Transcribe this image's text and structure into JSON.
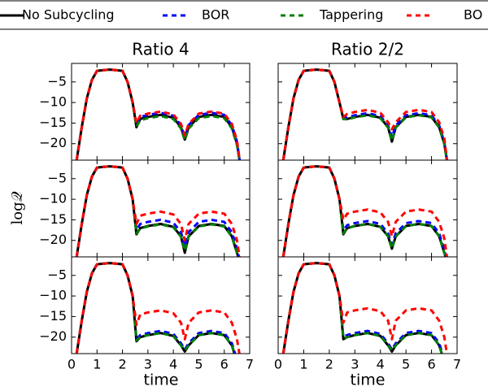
{
  "chart_data": {
    "type": "line",
    "legend": [
      {
        "name": "No Subcycling",
        "color": "#000000",
        "linestyle": "solid"
      },
      {
        "name": "BOR",
        "color": "#0000ff",
        "linestyle": "dashed"
      },
      {
        "name": "Tappering",
        "color": "#008000",
        "linestyle": "dashed"
      },
      {
        "name": "BO",
        "color": "#ff0000",
        "linestyle": "dashed"
      }
    ],
    "xlabel": "time",
    "ylabel": "log𝒬",
    "x": [
      0.2,
      0.4,
      0.6,
      0.8,
      1.0,
      1.5,
      2.0,
      2.2,
      2.4,
      2.55,
      2.7,
      3.0,
      3.5,
      4.0,
      4.3,
      4.45,
      4.6,
      5.0,
      5.5,
      6.0,
      6.3,
      6.5,
      6.65
    ],
    "xlim": [
      0,
      7
    ],
    "xticks": [
      0,
      1,
      2,
      3,
      4,
      5,
      6,
      7
    ],
    "ylim": [
      -24,
      -0.5
    ],
    "yticks": [
      {
        "value": -20,
        "label": "−20"
      },
      {
        "value": -15,
        "label": "−15"
      },
      {
        "value": -10,
        "label": "−10"
      },
      {
        "value": -5,
        "label": "−5"
      }
    ],
    "panels": [
      {
        "title": "Ratio 4",
        "series": [
          {
            "values": [
              -24,
              -16,
              -9,
              -4.5,
              -2.3,
              -2,
              -2.3,
              -5,
              -10,
              -16,
              -14,
              -13.5,
              -13,
              -13.7,
              -16,
              -19,
              -16,
              -13.5,
              -13,
              -13.5,
              -16,
              -20,
              -26
            ]
          },
          {
            "values": [
              -24,
              -16,
              -9,
              -4.5,
              -2.3,
              -2,
              -2.3,
              -5,
              -10,
              -15.5,
              -13.5,
              -13,
              -12.5,
              -13.2,
              -15.5,
              -18.5,
              -15.5,
              -13,
              -12.5,
              -13,
              -15.5,
              -19.5,
              -26
            ]
          },
          {
            "values": [
              -24,
              -16,
              -9,
              -4.5,
              -2.3,
              -2,
              -2.3,
              -5,
              -10,
              -15.8,
              -14.3,
              -13.8,
              -13.3,
              -14,
              -16.3,
              -19.2,
              -16.3,
              -13.8,
              -13.3,
              -13.8,
              -16.3,
              -20.3,
              -26
            ]
          },
          {
            "values": [
              -24,
              -16,
              -9,
              -4.5,
              -2.3,
              -2,
              -2.3,
              -5,
              -10,
              -15,
              -13.2,
              -12.7,
              -12.2,
              -12.9,
              -15.2,
              -18,
              -15.2,
              -12.7,
              -12.2,
              -12.7,
              -15.2,
              -19.2,
              -26
            ]
          }
        ]
      },
      {
        "title": "Ratio 2/2",
        "series": [
          {
            "values": [
              -24,
              -16,
              -9,
              -4.5,
              -2.3,
              -2,
              -2.3,
              -5,
              -10,
              -14,
              -14,
              -13.5,
              -13,
              -13.7,
              -16,
              -19.5,
              -16,
              -13.5,
              -13,
              -13.5,
              -16,
              -20,
              -26
            ]
          },
          {
            "values": [
              -24,
              -16,
              -9,
              -4.5,
              -2.3,
              -2,
              -2.3,
              -5,
              -10,
              -13.8,
              -13.6,
              -13.1,
              -12.6,
              -13.3,
              -15.6,
              -18.5,
              -15.6,
              -13.1,
              -12.6,
              -13.1,
              -15.6,
              -19.6,
              -26
            ]
          },
          {
            "values": [
              -24,
              -16,
              -9,
              -4.5,
              -2.3,
              -2,
              -2.3,
              -5,
              -10,
              -14,
              -14.1,
              -13.6,
              -13.1,
              -13.8,
              -16.1,
              -19.3,
              -16.1,
              -13.6,
              -13.1,
              -13.6,
              -16.1,
              -20.1,
              -26
            ]
          },
          {
            "values": [
              -24,
              -16,
              -9,
              -4.5,
              -2.3,
              -2,
              -2.3,
              -5,
              -10,
              -13.5,
              -12.8,
              -12.3,
              -11.8,
              -12.5,
              -14.8,
              -16.5,
              -14.8,
              -12.3,
              -11.8,
              -12.3,
              -14.8,
              -18.8,
              -26
            ]
          }
        ]
      },
      {
        "series": [
          {
            "values": [
              -24,
              -16,
              -9,
              -4.5,
              -2.3,
              -2,
              -2.3,
              -5,
              -10,
              -18.5,
              -17,
              -16.5,
              -16,
              -16.7,
              -19,
              -23,
              -19,
              -16.5,
              -16,
              -16.5,
              -19,
              -23,
              -26
            ]
          },
          {
            "values": [
              -24,
              -16,
              -9,
              -4.5,
              -2.3,
              -2,
              -2.3,
              -5,
              -10,
              -17.5,
              -16,
              -15.5,
              -15,
              -15.7,
              -18,
              -21.5,
              -18,
              -15.5,
              -15,
              -15.5,
              -18,
              -22,
              -26
            ]
          },
          {
            "values": [
              -24,
              -16,
              -9,
              -4.5,
              -2.3,
              -2,
              -2.3,
              -5,
              -10,
              -18.3,
              -17.1,
              -16.6,
              -16.1,
              -16.8,
              -19.1,
              -22.5,
              -19.1,
              -16.6,
              -16.1,
              -16.6,
              -19.1,
              -23.1,
              -26
            ]
          },
          {
            "values": [
              -24,
              -16,
              -9,
              -4.5,
              -2.3,
              -2,
              -2.3,
              -5,
              -10,
              -16,
              -14,
              -13.5,
              -13,
              -13.7,
              -16,
              -20,
              -16,
              -13.5,
              -13,
              -13.5,
              -16,
              -20,
              -26
            ]
          }
        ]
      },
      {
        "series": [
          {
            "values": [
              -24,
              -16,
              -9,
              -4.5,
              -2.3,
              -2,
              -2.3,
              -5,
              -10,
              -18.5,
              -17,
              -16.5,
              -16,
              -16.7,
              -19,
              -22,
              -19,
              -16.5,
              -16,
              -16.5,
              -19,
              -23,
              -26
            ]
          },
          {
            "values": [
              -24,
              -16,
              -9,
              -4.5,
              -2.3,
              -2,
              -2.3,
              -5,
              -10,
              -17.5,
              -16.3,
              -15.8,
              -15.3,
              -16,
              -18.3,
              -21,
              -18.3,
              -15.8,
              -15.3,
              -15.8,
              -18.3,
              -22.3,
              -26
            ]
          },
          {
            "values": [
              -24,
              -16,
              -9,
              -4.5,
              -2.3,
              -2,
              -2.3,
              -5,
              -10,
              -18.3,
              -17,
              -16.5,
              -16,
              -16.7,
              -19,
              -22,
              -19,
              -16.5,
              -16,
              -16.5,
              -19,
              -23,
              -26
            ]
          },
          {
            "values": [
              -24,
              -16,
              -9,
              -4.5,
              -2.3,
              -2,
              -2.3,
              -5,
              -10,
              -15,
              -13.5,
              -13,
              -12.5,
              -13.2,
              -15.5,
              -19,
              -15.5,
              -13,
              -12.5,
              -13,
              -15.5,
              -19.5,
              -26
            ]
          }
        ]
      },
      {
        "series": [
          {
            "values": [
              -24,
              -16,
              -9,
              -4.5,
              -2.3,
              -2,
              -2.3,
              -5,
              -10,
              -21,
              -20,
              -19.5,
              -19,
              -19.7,
              -22,
              -23.5,
              -22,
              -19.5,
              -19,
              -19.5,
              -22,
              -26,
              -26
            ]
          },
          {
            "values": [
              -24,
              -16,
              -9,
              -4.5,
              -2.3,
              -2,
              -2.3,
              -5,
              -10,
              -20.5,
              -19.5,
              -19,
              -18.5,
              -19.2,
              -21.5,
              -23,
              -21.5,
              -19,
              -18.5,
              -19,
              -21.5,
              -25.5,
              -26
            ]
          },
          {
            "values": [
              -24,
              -16,
              -9,
              -4.5,
              -2.3,
              -2,
              -2.3,
              -5,
              -10,
              -20.8,
              -20,
              -19.5,
              -19,
              -19.7,
              -22,
              -23.2,
              -22,
              -19.5,
              -19,
              -19.5,
              -22,
              -26,
              -26
            ]
          },
          {
            "values": [
              -24,
              -16,
              -9,
              -4.5,
              -2.3,
              -2,
              -2.3,
              -5,
              -10,
              -17,
              -14.5,
              -14,
              -13.5,
              -14.2,
              -16.5,
              -20.5,
              -16.5,
              -14,
              -13.5,
              -14,
              -16.5,
              -20.5,
              -26
            ]
          }
        ]
      },
      {
        "series": [
          {
            "values": [
              -24,
              -16,
              -9,
              -4.5,
              -2.3,
              -2,
              -2.3,
              -5,
              -10,
              -20.5,
              -20,
              -19.5,
              -19,
              -19.7,
              -22,
              -23.5,
              -22,
              -19.5,
              -19,
              -19.5,
              -22,
              -26,
              -26
            ]
          },
          {
            "values": [
              -24,
              -16,
              -9,
              -4.5,
              -2.3,
              -2,
              -2.3,
              -5,
              -10,
              -20,
              -19.5,
              -19,
              -18.5,
              -19.2,
              -21.5,
              -23,
              -21.5,
              -19,
              -18.5,
              -19,
              -21.5,
              -25.5,
              -26
            ]
          },
          {
            "values": [
              -24,
              -16,
              -9,
              -4.5,
              -2.3,
              -2,
              -2.3,
              -5,
              -10,
              -20.3,
              -20,
              -19.5,
              -19,
              -19.7,
              -22,
              -23.2,
              -22,
              -19.5,
              -19,
              -19.5,
              -22,
              -26,
              -26
            ]
          },
          {
            "values": [
              -24,
              -16,
              -9,
              -4.5,
              -2.3,
              -2,
              -2.3,
              -5,
              -10,
              -16.5,
              -14,
              -13.5,
              -13,
              -13.7,
              -16,
              -20.5,
              -16,
              -13.5,
              -13,
              -13.5,
              -16,
              -20,
              -26
            ]
          }
        ]
      }
    ]
  }
}
